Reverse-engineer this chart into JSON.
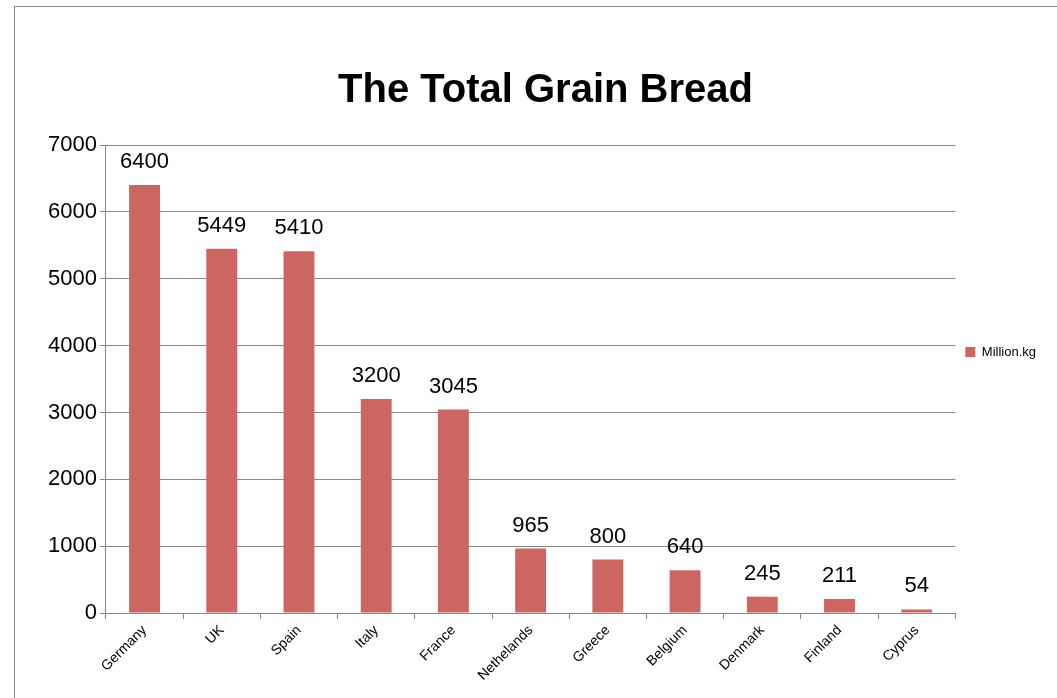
{
  "chart_data": {
    "type": "bar",
    "title": "The Total Grain Bread",
    "categories": [
      "Germany",
      "UK",
      "Spain",
      "Italy",
      "France",
      "Nethelands",
      "Greece",
      "Belgium",
      "Denmark",
      "Finland",
      "Cyprus"
    ],
    "series": [
      {
        "name": "Million.kg",
        "color": "#cd6660",
        "values": [
          6400,
          5449,
          5410,
          3200,
          3045,
          965,
          800,
          640,
          245,
          211,
          54
        ]
      }
    ],
    "ylim": [
      0,
      7000
    ],
    "yticks": [
      0,
      1000,
      2000,
      3000,
      4000,
      5000,
      6000,
      7000
    ],
    "grid": "y",
    "legend": "right",
    "data_labels": true
  }
}
